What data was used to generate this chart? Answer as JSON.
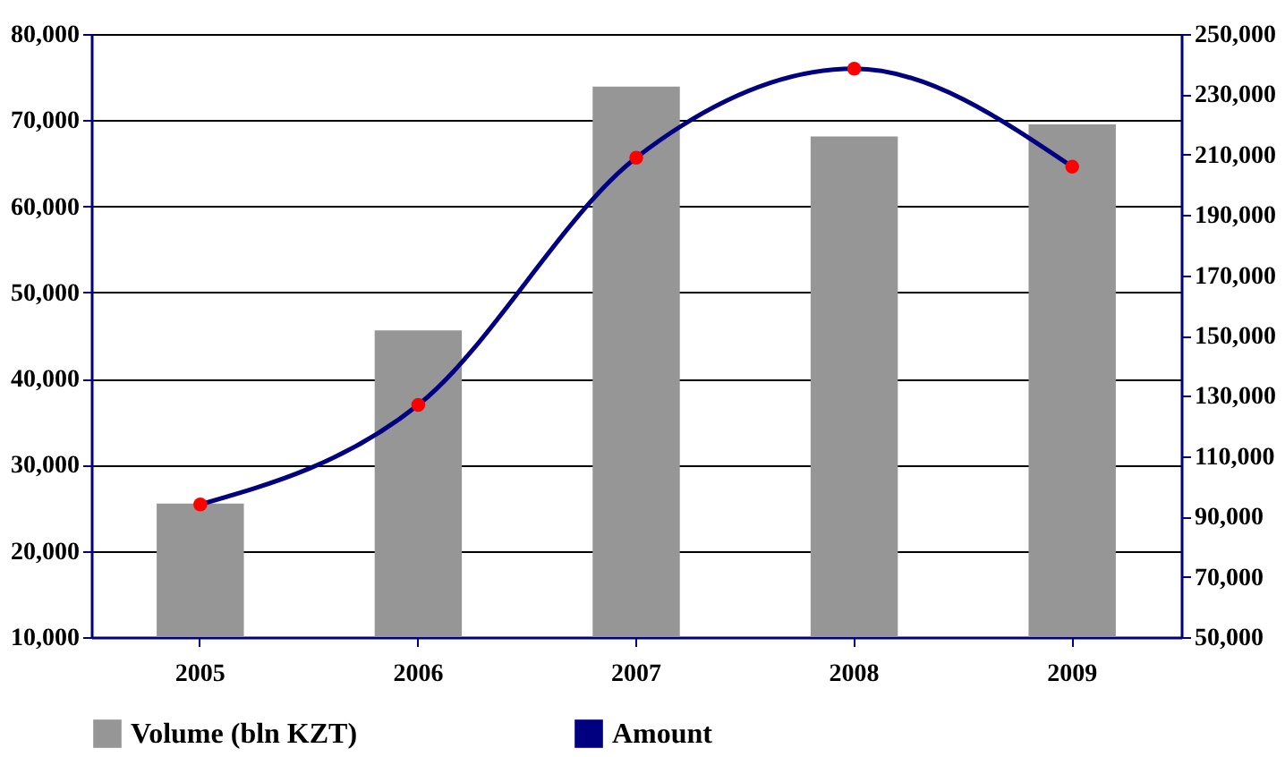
{
  "chart_data": {
    "type": "bar",
    "categories": [
      "2005",
      "2006",
      "2007",
      "2008",
      "2009"
    ],
    "series": [
      {
        "name": "Volume (bln KZT)",
        "color": "#969696",
        "values": [
          25500,
          45600,
          73900,
          68100,
          69500
        ]
      },
      {
        "name": "Amount",
        "type": "line",
        "axis": "y2",
        "color": "#000080",
        "values": [
          94000,
          127000,
          209000,
          238500,
          206000
        ]
      }
    ],
    "ylim": [
      10000,
      80000
    ],
    "yticks": [
      {
        "value": 10000,
        "label": "10,000"
      },
      {
        "value": 20000,
        "label": "20,000"
      },
      {
        "value": 30000,
        "label": "30,000"
      },
      {
        "value": 40000,
        "label": "40,000"
      },
      {
        "value": 50000,
        "label": "50,000"
      },
      {
        "value": 60000,
        "label": "60,000"
      },
      {
        "value": 70000,
        "label": "70,000"
      },
      {
        "value": 80000,
        "label": "80,000"
      }
    ],
    "y2lim": [
      50000,
      250000
    ],
    "y2ticks": [
      {
        "value": 50000,
        "label": "50,000"
      },
      {
        "value": 70000,
        "label": "70,000"
      },
      {
        "value": 90000,
        "label": "90,000"
      },
      {
        "value": 110000,
        "label": "110,000"
      },
      {
        "value": 130000,
        "label": "130,000"
      },
      {
        "value": 150000,
        "label": "150,000"
      },
      {
        "value": 170000,
        "label": "170,000"
      },
      {
        "value": 190000,
        "label": "190,000"
      },
      {
        "value": 210000,
        "label": "210,000"
      },
      {
        "value": 230000,
        "label": "230,000"
      },
      {
        "value": 250000,
        "label": "250,000"
      }
    ],
    "grid": "y",
    "legend": "bottom",
    "marker": "circle",
    "line_style": "solid"
  }
}
